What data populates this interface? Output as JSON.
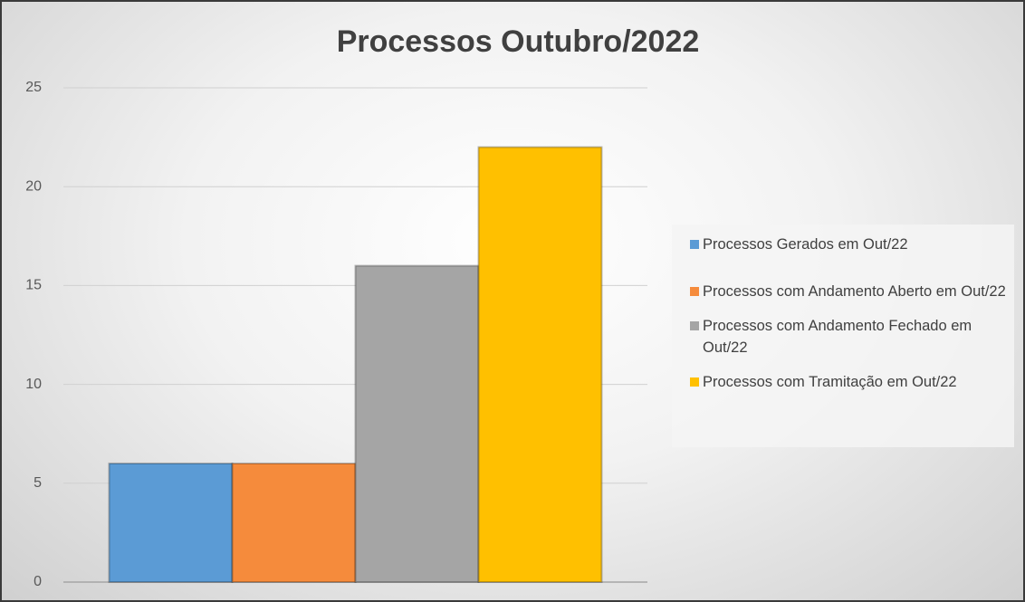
{
  "chart_data": {
    "type": "bar",
    "title": "Processos Outubro/2022",
    "categories": [
      null
    ],
    "series": [
      {
        "name": "Processos Gerados em Out/22",
        "color": "#5b9bd5",
        "values": [
          6
        ]
      },
      {
        "name": "Processos com Andamento Aberto em Out/22",
        "color": "#f58b3c",
        "values": [
          6
        ]
      },
      {
        "name": "Processos com Andamento Fechado em Out/22",
        "color": "#a5a5a5",
        "values": [
          16
        ]
      },
      {
        "name": "Processos com Tramitação em Out/22",
        "color": "#ffc000",
        "values": [
          22
        ]
      }
    ],
    "ylim": [
      0,
      25
    ],
    "yticks": [
      0,
      5,
      10,
      15,
      20,
      25
    ],
    "grid": true,
    "legend": "right"
  }
}
